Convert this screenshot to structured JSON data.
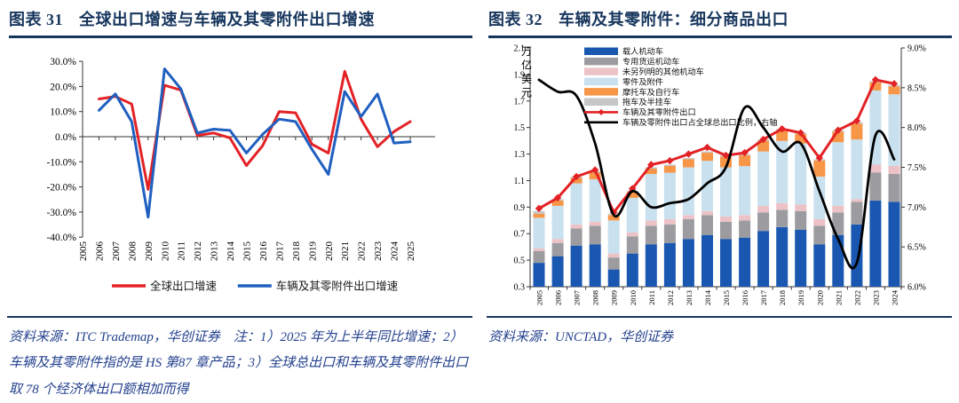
{
  "page": {
    "background": "#ffffff",
    "accent_navy": "#17365d",
    "note_blue": "#24418e"
  },
  "panels": {
    "left": {
      "figure_label": "图表 31",
      "title": "全球出口增速与车辆及其零附件出口增速",
      "source_note": "资料来源：ITC Trademap，华创证券　注：1）2025 年为上半年同比增速；2）车辆及其零附件指的是 HS 第87 章产品；3）全球总出口和车辆及其零附件出口取 78 个经济体出口额相加而得"
    },
    "right": {
      "figure_label": "图表 32",
      "title": "车辆及其零附件：细分商品出口",
      "source_note": "资料来源：UNCTAD，华创证券"
    }
  },
  "chart_data": [
    {
      "type": "line",
      "title": "全球出口增速与车辆及其零附件出口增速",
      "x_ticks": [
        2005,
        2006,
        2007,
        2008,
        2009,
        2010,
        2011,
        2012,
        2013,
        2014,
        2015,
        2016,
        2017,
        2018,
        2019,
        2020,
        2021,
        2022,
        2023,
        2024,
        2025
      ],
      "x": [
        2006,
        2007,
        2008,
        2009,
        2010,
        2011,
        2012,
        2013,
        2014,
        2015,
        2016,
        2017,
        2018,
        2019,
        2020,
        2021,
        2022,
        2023,
        2024,
        2025
      ],
      "series": [
        {
          "name": "全球出口增速",
          "color": "#e32226",
          "values": [
            15,
            16,
            13,
            -21,
            20.5,
            18.5,
            0.5,
            1.5,
            -0.5,
            -11.5,
            -3.5,
            10,
            9.5,
            -3,
            -6.5,
            26,
            7,
            -4,
            2,
            6
          ]
        },
        {
          "name": "车辆及其零附件出口增速",
          "color": "#1f5fc0",
          "values": [
            10.5,
            17,
            6,
            -32,
            27,
            19,
            1.5,
            3,
            2.5,
            -6.5,
            1,
            7,
            6,
            -5,
            -15,
            18,
            8,
            17,
            -2.5,
            -2
          ]
        }
      ],
      "ylim": [
        -40,
        30
      ],
      "ytick_step": 10,
      "ytick_format": "0.0%",
      "grid": false,
      "legend_position": "bottom"
    },
    {
      "type": "stacked-bar-line",
      "title": "车辆及其零附件：细分商品出口",
      "unit_label": "万亿美元",
      "categories": [
        2005,
        2006,
        2007,
        2008,
        2009,
        2010,
        2011,
        2012,
        2013,
        2014,
        2015,
        2016,
        2017,
        2018,
        2019,
        2020,
        2021,
        2022,
        2023,
        2024
      ],
      "bar_series": [
        {
          "name": "载人机动车",
          "color": "#1a57b0",
          "values": [
            0.48,
            0.53,
            0.61,
            0.62,
            0.43,
            0.55,
            0.62,
            0.63,
            0.66,
            0.69,
            0.66,
            0.67,
            0.72,
            0.75,
            0.73,
            0.62,
            0.69,
            0.77,
            0.95,
            0.94
          ]
        },
        {
          "name": "专用货运机动车",
          "color": "#9c9ca0",
          "values": [
            0.09,
            0.1,
            0.13,
            0.14,
            0.09,
            0.13,
            0.14,
            0.14,
            0.15,
            0.15,
            0.13,
            0.13,
            0.14,
            0.13,
            0.14,
            0.14,
            0.17,
            0.17,
            0.21,
            0.21
          ]
        },
        {
          "name": "未另列明的其他机动车",
          "color": "#ecc2c7",
          "values": [
            0.02,
            0.03,
            0.03,
            0.03,
            0.03,
            0.03,
            0.04,
            0.04,
            0.03,
            0.03,
            0.04,
            0.04,
            0.05,
            0.05,
            0.05,
            0.05,
            0.05,
            0.02,
            0.06,
            0.06
          ]
        },
        {
          "name": "零件及附件",
          "color": "#c9e0ee",
          "values": [
            0.23,
            0.25,
            0.31,
            0.32,
            0.25,
            0.26,
            0.35,
            0.35,
            0.36,
            0.38,
            0.37,
            0.37,
            0.41,
            0.47,
            0.46,
            0.32,
            0.48,
            0.45,
            0.56,
            0.54
          ]
        },
        {
          "name": "摩托车及自行车",
          "color": "#f79646",
          "values": [
            0.03,
            0.04,
            0.04,
            0.05,
            0.04,
            0.04,
            0.04,
            0.05,
            0.06,
            0.06,
            0.08,
            0.08,
            0.08,
            0.08,
            0.07,
            0.12,
            0.08,
            0.12,
            0.06,
            0.06
          ]
        },
        {
          "name": "拖车及半挂车",
          "color": "#c6c6c6",
          "values": [
            0.02,
            0.01,
            0.01,
            0.01,
            0.01,
            0.01,
            0.01,
            0.01,
            0.01,
            0.01,
            0.01,
            0.01,
            0.01,
            0.01,
            0.01,
            0.01,
            0.01,
            0.01,
            0.01,
            0.01
          ]
        }
      ],
      "line_series": [
        {
          "name": "车辆及其零附件出口",
          "color": "#e32226",
          "axis": "left",
          "marker": "diamond",
          "smooth": false,
          "values": [
            0.89,
            0.97,
            1.13,
            1.18,
            0.86,
            1.04,
            1.22,
            1.25,
            1.3,
            1.35,
            1.29,
            1.31,
            1.41,
            1.49,
            1.46,
            1.27,
            1.48,
            1.55,
            1.86,
            1.83
          ]
        },
        {
          "name": "车辆及零附件出口占全球总出口比例，右轴",
          "color": "#000000",
          "axis": "right",
          "marker": "none",
          "smooth": true,
          "values": [
            8.6,
            8.45,
            8.4,
            7.8,
            6.9,
            7.2,
            7.0,
            7.05,
            7.1,
            7.3,
            7.5,
            8.25,
            8.0,
            7.7,
            7.8,
            7.2,
            6.6,
            6.3,
            7.9,
            7.6
          ]
        }
      ],
      "left_ylim": [
        0.3,
        2.1
      ],
      "left_ytick_step": 0.2,
      "left_ytick_format": "0.0",
      "right_ylim": [
        6.0,
        9.0
      ],
      "right_ytick_step": 0.5,
      "right_ytick_format": "0.0%",
      "bar_baseline": 0.3,
      "grid": false,
      "legend_position": "top-left-inside"
    }
  ]
}
